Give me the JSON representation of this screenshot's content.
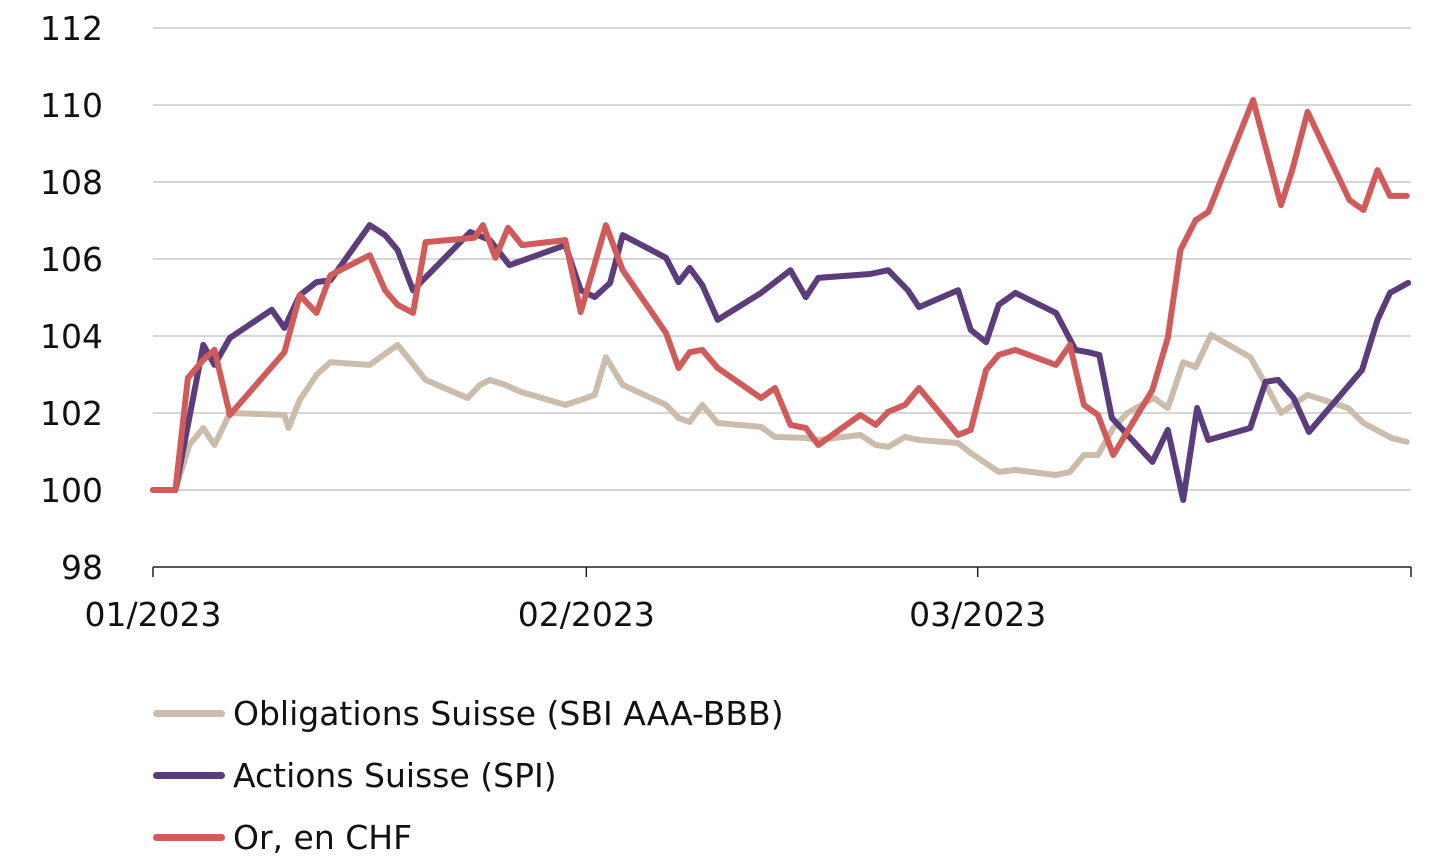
{
  "chart_data": {
    "type": "line",
    "title": "",
    "xlabel": "",
    "ylabel": "",
    "x_unit": "days since 01/01/2023",
    "xlim": [
      0,
      90
    ],
    "ylim": [
      98,
      112
    ],
    "y_ticks": [
      98,
      100,
      102,
      104,
      106,
      108,
      110,
      112
    ],
    "x_ticks": [
      {
        "day": 0,
        "label": "01/2023"
      },
      {
        "day": 31,
        "label": "02/2023"
      },
      {
        "day": 59,
        "label": "03/2023"
      },
      {
        "day": 90,
        "label": ""
      }
    ],
    "grid": true,
    "legend_position": "bottom-left",
    "series": [
      {
        "name": "Obligations Suisse (SBI AAA-BBB)",
        "color": "#cbbcab",
        "points": [
          [
            0,
            100
          ],
          [
            1.6,
            100
          ],
          [
            2.6,
            101.17
          ],
          [
            3.6,
            101.61
          ],
          [
            4.4,
            101.17
          ],
          [
            5.5,
            102.0
          ],
          [
            9.4,
            101.95
          ],
          [
            9.7,
            101.61
          ],
          [
            10.5,
            102.34
          ],
          [
            11.7,
            102.99
          ],
          [
            12.7,
            103.32
          ],
          [
            15.5,
            103.25
          ],
          [
            17.5,
            103.77
          ],
          [
            19.5,
            102.86
          ],
          [
            22.5,
            102.39
          ],
          [
            23.4,
            102.73
          ],
          [
            24.1,
            102.86
          ],
          [
            25.2,
            102.73
          ],
          [
            26.3,
            102.55
          ],
          [
            29.5,
            102.21
          ],
          [
            30.6,
            102.34
          ],
          [
            31.6,
            102.47
          ],
          [
            32.4,
            103.45
          ],
          [
            33.6,
            102.73
          ],
          [
            36.7,
            102.21
          ],
          [
            37.6,
            101.87
          ],
          [
            38.4,
            101.77
          ],
          [
            39.3,
            102.21
          ],
          [
            40.4,
            101.74
          ],
          [
            43.5,
            101.64
          ],
          [
            44.5,
            101.38
          ],
          [
            46.7,
            101.35
          ],
          [
            47.6,
            101.3
          ],
          [
            50.6,
            101.43
          ],
          [
            51.7,
            101.17
          ],
          [
            52.6,
            101.12
          ],
          [
            53.8,
            101.38
          ],
          [
            54.8,
            101.3
          ],
          [
            57.6,
            101.22
          ],
          [
            58.5,
            100.96
          ],
          [
            60.5,
            100.47
          ],
          [
            61.7,
            100.52
          ],
          [
            64.6,
            100.39
          ],
          [
            65.6,
            100.47
          ],
          [
            66.6,
            100.91
          ],
          [
            67.6,
            100.91
          ],
          [
            68.7,
            101.61
          ],
          [
            69.7,
            102.0
          ],
          [
            71.6,
            102.39
          ],
          [
            72.6,
            102.13
          ],
          [
            73.7,
            103.32
          ],
          [
            74.6,
            103.19
          ],
          [
            75.7,
            104.03
          ],
          [
            78.5,
            103.45
          ],
          [
            79.5,
            102.81
          ],
          [
            80.7,
            102.0
          ],
          [
            82.6,
            102.47
          ],
          [
            85.5,
            102.13
          ],
          [
            86.6,
            101.74
          ],
          [
            88.6,
            101.35
          ],
          [
            89.7,
            101.25
          ]
        ]
      },
      {
        "name": "Actions Suisse (SPI)",
        "color": "#5b3d7b",
        "points": [
          [
            0,
            100
          ],
          [
            1.6,
            100
          ],
          [
            3.6,
            103.77
          ],
          [
            4.4,
            103.25
          ],
          [
            5.5,
            103.95
          ],
          [
            8.5,
            104.68
          ],
          [
            9.4,
            104.21
          ],
          [
            10.5,
            105.06
          ],
          [
            11.7,
            105.4
          ],
          [
            12.7,
            105.45
          ],
          [
            15.5,
            106.88
          ],
          [
            16.6,
            106.62
          ],
          [
            17.5,
            106.23
          ],
          [
            18.6,
            105.19
          ],
          [
            22.7,
            106.7
          ],
          [
            24.1,
            106.49
          ],
          [
            25.5,
            105.84
          ],
          [
            29.5,
            106.36
          ],
          [
            30.6,
            105.19
          ],
          [
            31.6,
            105.01
          ],
          [
            32.7,
            105.38
          ],
          [
            33.6,
            106.62
          ],
          [
            36.7,
            106.03
          ],
          [
            37.6,
            105.4
          ],
          [
            38.4,
            105.77
          ],
          [
            39.3,
            105.32
          ],
          [
            40.4,
            104.42
          ],
          [
            43.5,
            105.12
          ],
          [
            45.6,
            105.71
          ],
          [
            46.7,
            105.01
          ],
          [
            47.6,
            105.51
          ],
          [
            51.3,
            105.61
          ],
          [
            52.6,
            105.71
          ],
          [
            54.0,
            105.19
          ],
          [
            54.8,
            104.75
          ],
          [
            57.6,
            105.19
          ],
          [
            58.5,
            104.16
          ],
          [
            59.6,
            103.84
          ],
          [
            60.5,
            104.81
          ],
          [
            61.7,
            105.12
          ],
          [
            64.6,
            104.6
          ],
          [
            66.0,
            103.64
          ],
          [
            66.9,
            103.58
          ],
          [
            67.7,
            103.51
          ],
          [
            68.6,
            101.87
          ],
          [
            71.5,
            100.73
          ],
          [
            72.6,
            101.56
          ],
          [
            73.7,
            99.74
          ],
          [
            74.7,
            102.13
          ],
          [
            75.5,
            101.3
          ],
          [
            78.5,
            101.61
          ],
          [
            79.6,
            102.81
          ],
          [
            80.5,
            102.86
          ],
          [
            81.6,
            102.39
          ],
          [
            82.7,
            101.51
          ],
          [
            86.5,
            103.12
          ],
          [
            87.6,
            104.42
          ],
          [
            88.5,
            105.12
          ],
          [
            89.8,
            105.38
          ]
        ]
      },
      {
        "name": "Or, en CHF",
        "color": "#d05b5b",
        "points": [
          [
            0,
            100
          ],
          [
            1.6,
            100
          ],
          [
            2.5,
            102.91
          ],
          [
            3.6,
            103.38
          ],
          [
            4.4,
            103.64
          ],
          [
            5.5,
            101.95
          ],
          [
            9.4,
            103.58
          ],
          [
            10.5,
            105.06
          ],
          [
            11.7,
            104.6
          ],
          [
            12.7,
            105.58
          ],
          [
            15.5,
            106.1
          ],
          [
            16.6,
            105.19
          ],
          [
            17.5,
            104.81
          ],
          [
            18.6,
            104.6
          ],
          [
            19.5,
            106.44
          ],
          [
            23.0,
            106.55
          ],
          [
            23.6,
            106.88
          ],
          [
            24.5,
            106.03
          ],
          [
            25.4,
            106.81
          ],
          [
            26.4,
            106.36
          ],
          [
            29.5,
            106.49
          ],
          [
            30.6,
            104.62
          ],
          [
            32.4,
            106.88
          ],
          [
            33.6,
            105.71
          ],
          [
            36.7,
            104.08
          ],
          [
            37.6,
            103.17
          ],
          [
            38.4,
            103.58
          ],
          [
            39.3,
            103.64
          ],
          [
            40.4,
            103.17
          ],
          [
            43.5,
            102.39
          ],
          [
            44.5,
            102.65
          ],
          [
            45.6,
            101.69
          ],
          [
            46.7,
            101.61
          ],
          [
            47.6,
            101.17
          ],
          [
            50.6,
            101.95
          ],
          [
            51.7,
            101.69
          ],
          [
            52.6,
            102.03
          ],
          [
            53.8,
            102.21
          ],
          [
            54.8,
            102.65
          ],
          [
            57.6,
            101.43
          ],
          [
            58.5,
            101.56
          ],
          [
            59.6,
            103.12
          ],
          [
            60.5,
            103.51
          ],
          [
            61.7,
            103.64
          ],
          [
            64.6,
            103.25
          ],
          [
            65.6,
            103.77
          ],
          [
            66.6,
            102.21
          ],
          [
            67.6,
            101.95
          ],
          [
            68.7,
            100.91
          ],
          [
            71.5,
            102.6
          ],
          [
            72.6,
            103.95
          ],
          [
            73.5,
            106.23
          ],
          [
            74.6,
            107.01
          ],
          [
            75.5,
            107.22
          ],
          [
            78.7,
            110.13
          ],
          [
            80.7,
            107.4
          ],
          [
            81.5,
            108.31
          ],
          [
            82.6,
            109.82
          ],
          [
            85.6,
            107.53
          ],
          [
            86.6,
            107.27
          ],
          [
            87.6,
            108.31
          ],
          [
            88.5,
            107.64
          ],
          [
            89.7,
            107.64
          ]
        ]
      }
    ]
  }
}
